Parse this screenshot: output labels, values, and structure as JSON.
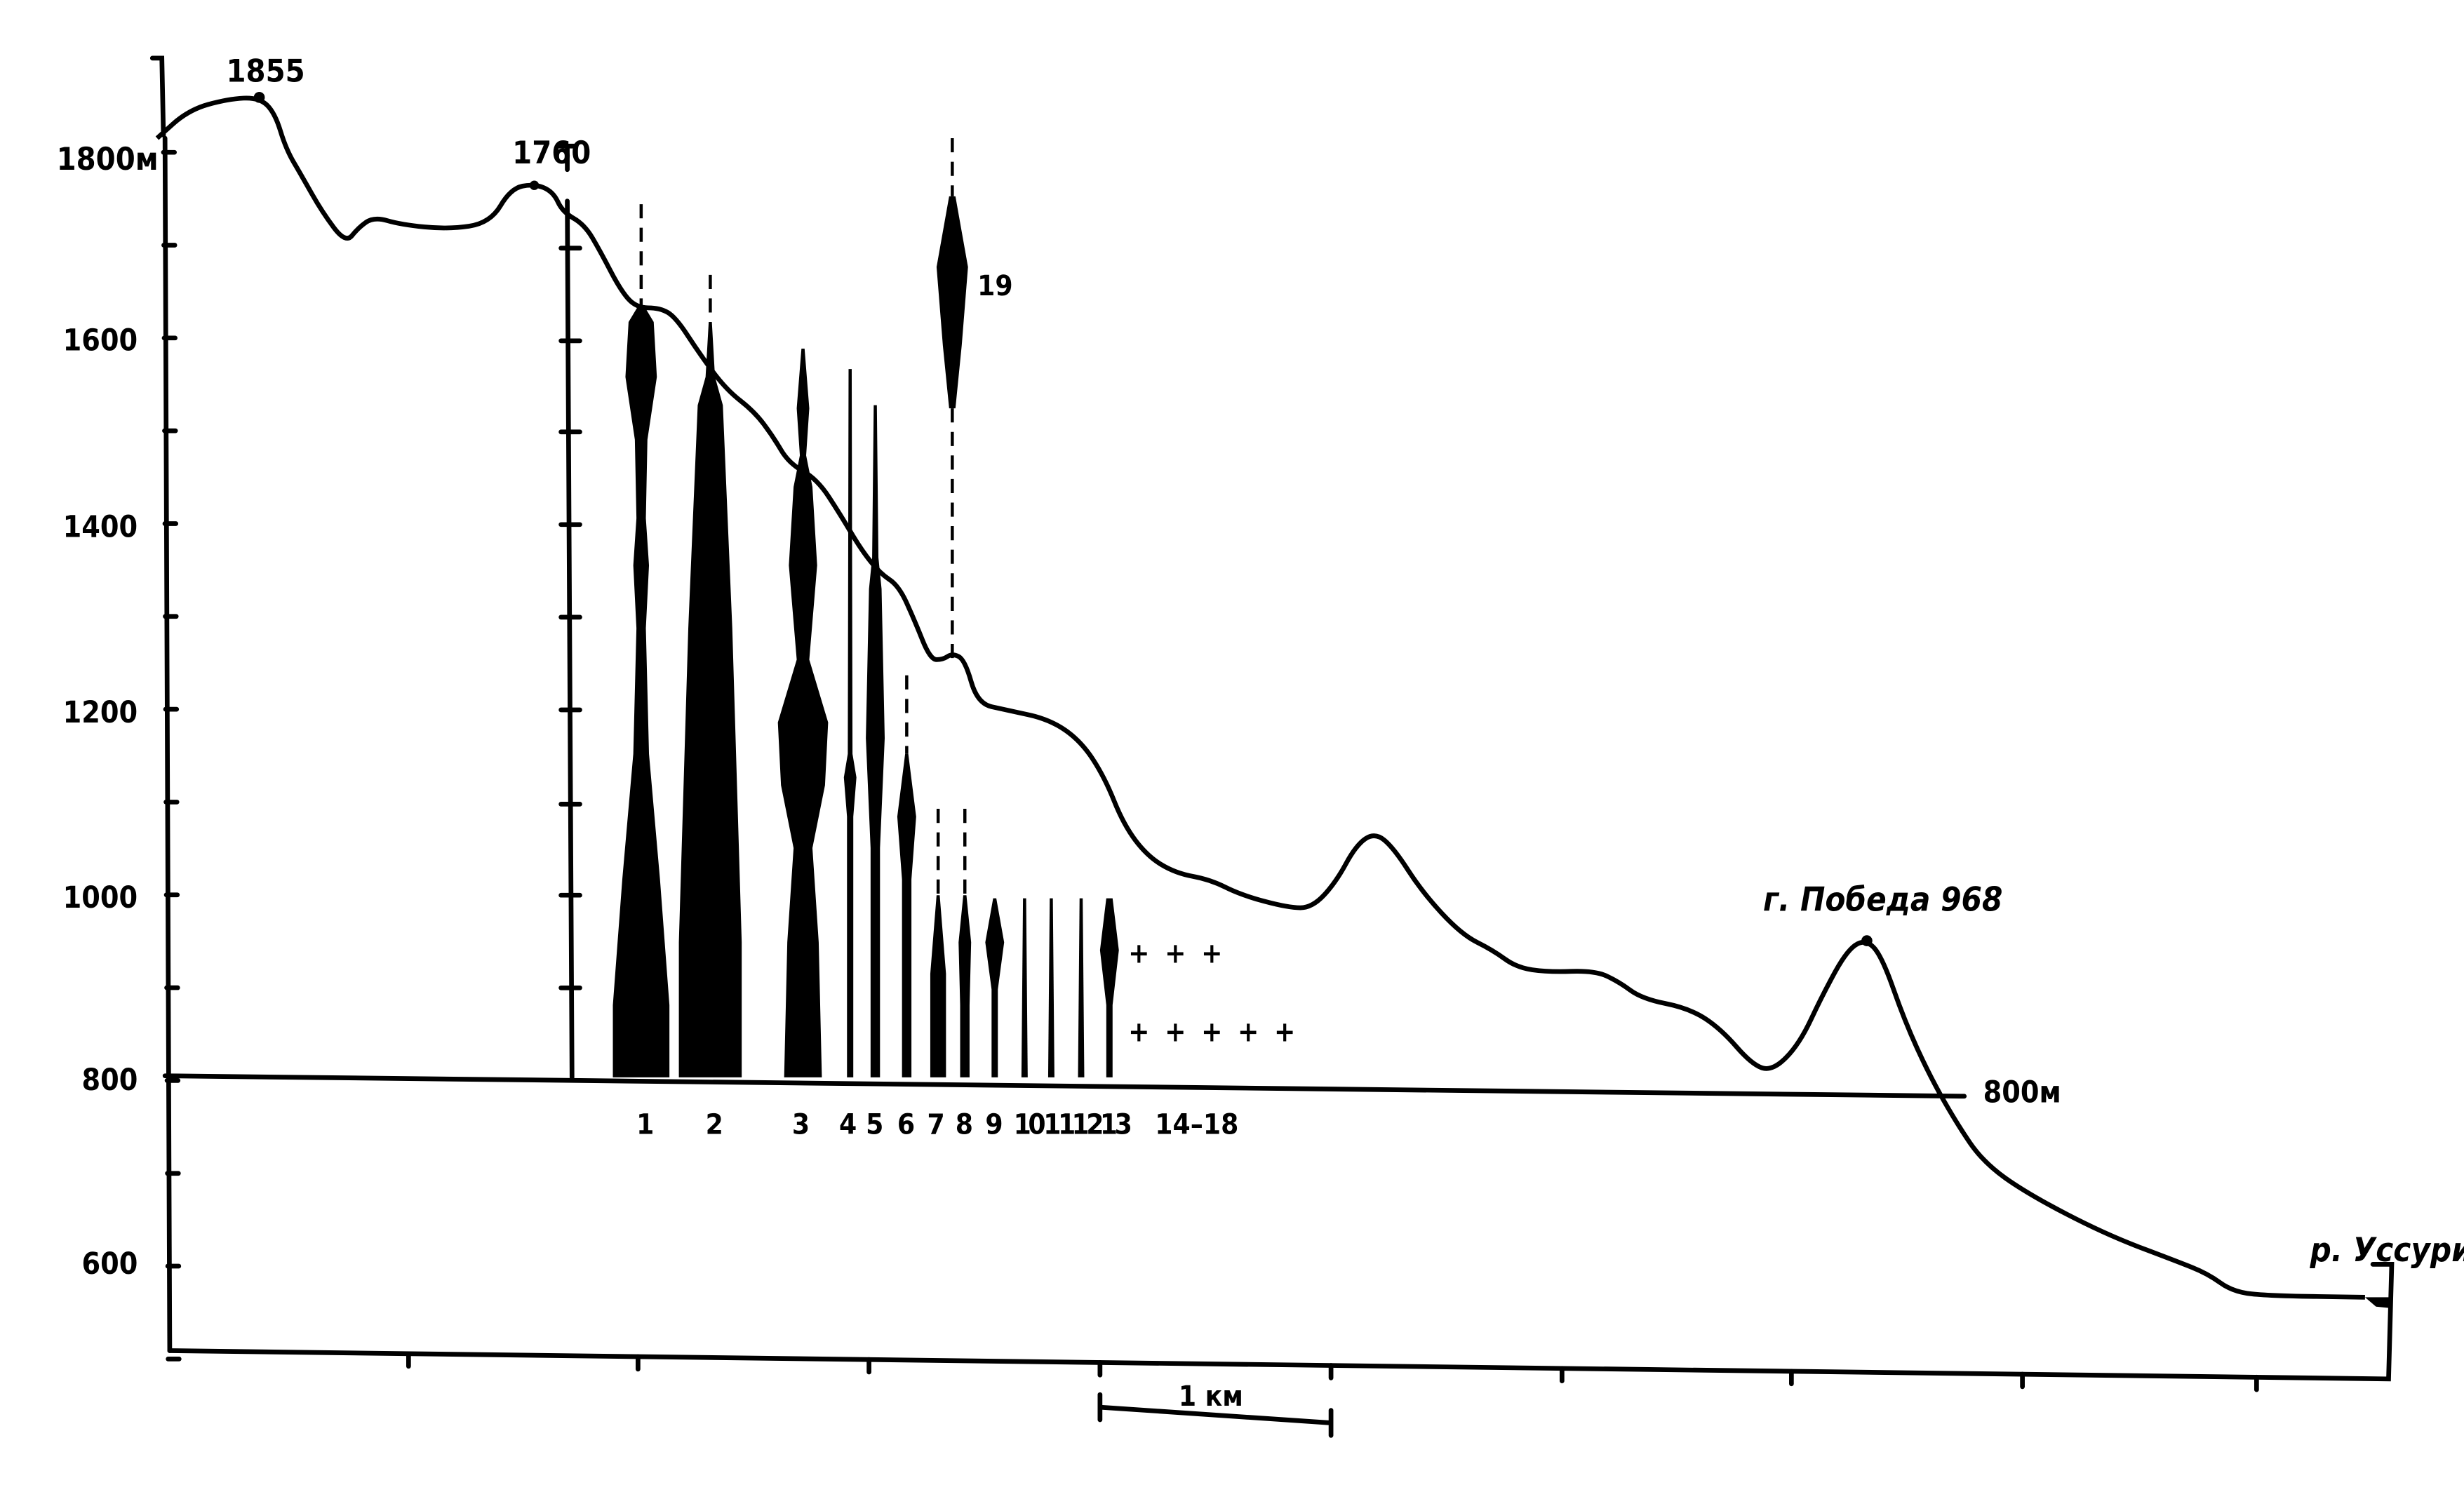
{
  "y_axis": {
    "unit_label": "1800м",
    "ticks": [
      {
        "value": 1800,
        "label": "1800м"
      },
      {
        "value": 1600,
        "label": "1600"
      },
      {
        "value": 1400,
        "label": "1400"
      },
      {
        "value": 1200,
        "label": "1200"
      },
      {
        "value": 1000,
        "label": "1000"
      },
      {
        "value": 800,
        "label": "800"
      },
      {
        "value": 600,
        "label": "600"
      }
    ]
  },
  "peaks": {
    "summit_1": "1855",
    "summit_2": "1760",
    "pobeda": "г. Победа  968",
    "river": "р. Уссури"
  },
  "reference_line": {
    "value": 800,
    "label": "800м"
  },
  "scale_bar": {
    "label": "1 км"
  },
  "species_labels": [
    "1",
    "2",
    "3",
    "4",
    "5",
    "6",
    "7",
    "8",
    "9",
    "10",
    "11",
    "12",
    "13",
    "14–18"
  ],
  "species_19_label": "19",
  "crosses": {
    "row1": "+ + +",
    "row2": "+ + + + +"
  }
}
